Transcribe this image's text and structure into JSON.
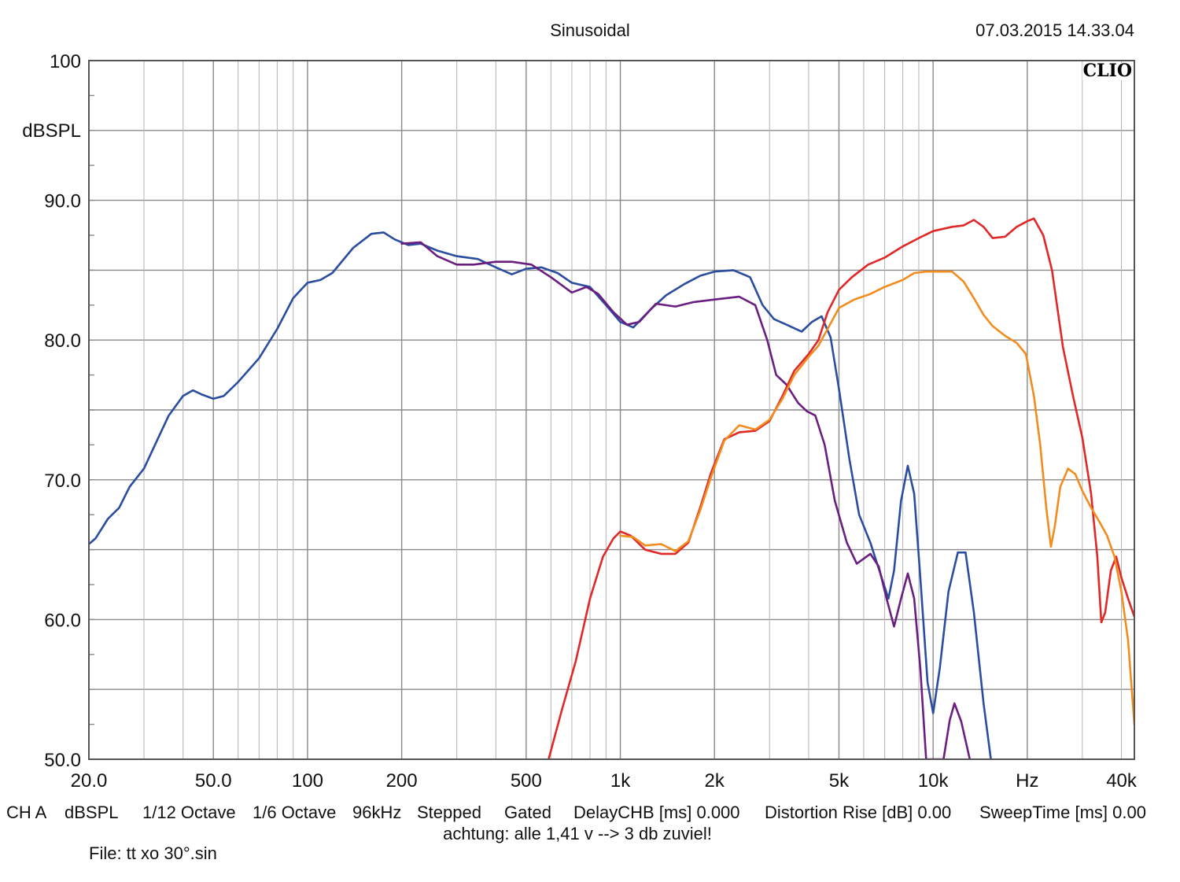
{
  "header": {
    "title": "Sinusoidal",
    "timestamp": "07.03.2015 14.33.04",
    "logo": "CLIO"
  },
  "footer": {
    "settings": [
      "CH A",
      "dBSPL",
      "1/12 Octave",
      "1/6 Octave",
      "96kHz",
      "Stepped",
      "Gated",
      "DelayCHB [ms] 0.000",
      "Distortion Rise [dB] 0.00",
      "SweepTime [ms] 0.00"
    ],
    "note": "achtung: alle 1,41 v --> 3 db zuviel!",
    "file": "File: tt xo 30°.sin"
  },
  "chart_data": {
    "type": "line",
    "title": "Sinusoidal",
    "ylabel": "dBSPL",
    "xlabel": "",
    "xscale": "log",
    "xlim": [
      20,
      44000
    ],
    "ylim": [
      50,
      100
    ],
    "grid": true,
    "y_ticks": [
      "100",
      "90.0",
      "80.0",
      "70.0",
      "60.0",
      "50.0"
    ],
    "x_ticks": [
      {
        "label": "20.0",
        "f": 20
      },
      {
        "label": "50.0",
        "f": 50
      },
      {
        "label": "100",
        "f": 100
      },
      {
        "label": "200",
        "f": 200
      },
      {
        "label": "500",
        "f": 500
      },
      {
        "label": "1k",
        "f": 1000
      },
      {
        "label": "2k",
        "f": 2000
      },
      {
        "label": "5k",
        "f": 5000
      },
      {
        "label": "10k",
        "f": 10000
      },
      {
        "label": "Hz",
        "f": 20000
      },
      {
        "label": "40k",
        "f": 40000
      }
    ],
    "series": [
      {
        "color": "#2b4da0",
        "points": [
          [
            20,
            65.4
          ],
          [
            21,
            65.8
          ],
          [
            23,
            67.2
          ],
          [
            25,
            68.0
          ],
          [
            27,
            69.5
          ],
          [
            30,
            70.8
          ],
          [
            33,
            72.8
          ],
          [
            36,
            74.6
          ],
          [
            40,
            76.0
          ],
          [
            43,
            76.4
          ],
          [
            46,
            76.1
          ],
          [
            50,
            75.8
          ],
          [
            54,
            76.0
          ],
          [
            60,
            77.0
          ],
          [
            70,
            78.7
          ],
          [
            80,
            80.8
          ],
          [
            90,
            83.0
          ],
          [
            100,
            84.1
          ],
          [
            110,
            84.3
          ],
          [
            120,
            84.8
          ],
          [
            140,
            86.6
          ],
          [
            160,
            87.6
          ],
          [
            175,
            87.7
          ],
          [
            190,
            87.2
          ],
          [
            210,
            86.8
          ],
          [
            230,
            86.9
          ],
          [
            260,
            86.4
          ],
          [
            300,
            86.0
          ],
          [
            350,
            85.8
          ],
          [
            400,
            85.2
          ],
          [
            450,
            84.7
          ],
          [
            500,
            85.1
          ],
          [
            560,
            85.2
          ],
          [
            630,
            84.8
          ],
          [
            700,
            84.1
          ],
          [
            800,
            83.8
          ],
          [
            900,
            82.5
          ],
          [
            1000,
            81.3
          ],
          [
            1100,
            80.9
          ],
          [
            1250,
            82.2
          ],
          [
            1400,
            83.2
          ],
          [
            1600,
            84.0
          ],
          [
            1800,
            84.6
          ],
          [
            2000,
            84.9
          ],
          [
            2300,
            85.0
          ],
          [
            2600,
            84.5
          ],
          [
            2850,
            82.5
          ],
          [
            3100,
            81.5
          ],
          [
            3400,
            81.1
          ],
          [
            3800,
            80.6
          ],
          [
            4100,
            81.3
          ],
          [
            4400,
            81.7
          ],
          [
            4700,
            80.2
          ],
          [
            5000,
            76.5
          ],
          [
            5400,
            71.5
          ],
          [
            5800,
            67.5
          ],
          [
            6300,
            65.5
          ],
          [
            6800,
            63.2
          ],
          [
            7200,
            61.5
          ],
          [
            7500,
            63.5
          ],
          [
            7900,
            68.5
          ],
          [
            8300,
            71.0
          ],
          [
            8700,
            69.0
          ],
          [
            9100,
            63.0
          ],
          [
            9600,
            55.5
          ],
          [
            10000,
            53.3
          ],
          [
            10500,
            56.5
          ],
          [
            11200,
            62.0
          ],
          [
            12000,
            64.8
          ],
          [
            12700,
            64.8
          ],
          [
            13500,
            60.5
          ],
          [
            14500,
            54.0
          ],
          [
            15300,
            50.0
          ]
        ]
      },
      {
        "color": "#6a1e80",
        "points": [
          [
            200,
            86.9
          ],
          [
            230,
            87.0
          ],
          [
            260,
            86.0
          ],
          [
            300,
            85.4
          ],
          [
            340,
            85.4
          ],
          [
            400,
            85.6
          ],
          [
            450,
            85.6
          ],
          [
            520,
            85.4
          ],
          [
            600,
            84.5
          ],
          [
            700,
            83.4
          ],
          [
            780,
            83.8
          ],
          [
            850,
            83.3
          ],
          [
            950,
            82.0
          ],
          [
            1050,
            81.1
          ],
          [
            1150,
            81.3
          ],
          [
            1300,
            82.6
          ],
          [
            1500,
            82.4
          ],
          [
            1700,
            82.7
          ],
          [
            2000,
            82.9
          ],
          [
            2400,
            83.1
          ],
          [
            2700,
            82.5
          ],
          [
            2950,
            80.0
          ],
          [
            3150,
            77.5
          ],
          [
            3400,
            76.8
          ],
          [
            3700,
            75.5
          ],
          [
            3950,
            74.9
          ],
          [
            4200,
            74.6
          ],
          [
            4500,
            72.5
          ],
          [
            4850,
            68.5
          ],
          [
            5300,
            65.5
          ],
          [
            5700,
            64.0
          ],
          [
            6300,
            64.7
          ],
          [
            6700,
            63.8
          ],
          [
            7100,
            61.5
          ],
          [
            7500,
            59.5
          ],
          [
            7900,
            61.5
          ],
          [
            8300,
            63.3
          ],
          [
            8700,
            61.5
          ],
          [
            9100,
            56.5
          ],
          [
            9500,
            50.0
          ],
          [
            10800,
            50.0
          ],
          [
            11300,
            52.8
          ],
          [
            11700,
            54.0
          ],
          [
            12300,
            52.7
          ],
          [
            13100,
            50.0
          ]
        ]
      },
      {
        "color": "#e02828",
        "points": [
          [
            590,
            50.0
          ],
          [
            650,
            53.5
          ],
          [
            720,
            57.0
          ],
          [
            800,
            61.5
          ],
          [
            880,
            64.5
          ],
          [
            950,
            65.8
          ],
          [
            1000,
            66.3
          ],
          [
            1080,
            66.0
          ],
          [
            1200,
            65.0
          ],
          [
            1350,
            64.7
          ],
          [
            1500,
            64.7
          ],
          [
            1650,
            65.5
          ],
          [
            1800,
            68.0
          ],
          [
            1950,
            70.5
          ],
          [
            2150,
            72.9
          ],
          [
            2400,
            73.4
          ],
          [
            2700,
            73.5
          ],
          [
            3000,
            74.2
          ],
          [
            3300,
            76.0
          ],
          [
            3600,
            77.8
          ],
          [
            4000,
            79.0
          ],
          [
            4300,
            80.0
          ],
          [
            4600,
            82.0
          ],
          [
            5000,
            83.6
          ],
          [
            5500,
            84.5
          ],
          [
            6200,
            85.4
          ],
          [
            7000,
            85.9
          ],
          [
            8000,
            86.7
          ],
          [
            9000,
            87.3
          ],
          [
            10000,
            87.8
          ],
          [
            11500,
            88.1
          ],
          [
            12500,
            88.2
          ],
          [
            13500,
            88.6
          ],
          [
            14500,
            88.1
          ],
          [
            15500,
            87.3
          ],
          [
            17000,
            87.4
          ],
          [
            18500,
            88.1
          ],
          [
            20000,
            88.5
          ],
          [
            21000,
            88.7
          ],
          [
            22500,
            87.5
          ],
          [
            24000,
            85.0
          ],
          [
            26000,
            79.5
          ],
          [
            28000,
            76.0
          ],
          [
            30000,
            73.0
          ],
          [
            32000,
            69.0
          ],
          [
            33500,
            64.5
          ],
          [
            34500,
            59.8
          ],
          [
            35500,
            60.5
          ],
          [
            37000,
            63.5
          ],
          [
            38500,
            64.5
          ],
          [
            40000,
            63.0
          ],
          [
            42000,
            61.5
          ],
          [
            44000,
            60.2
          ]
        ]
      },
      {
        "color": "#f28c1e",
        "points": [
          [
            1000,
            66.0
          ],
          [
            1100,
            65.9
          ],
          [
            1200,
            65.3
          ],
          [
            1350,
            65.4
          ],
          [
            1500,
            64.9
          ],
          [
            1650,
            65.6
          ],
          [
            1800,
            67.8
          ],
          [
            1950,
            70.2
          ],
          [
            2150,
            72.8
          ],
          [
            2400,
            73.9
          ],
          [
            2700,
            73.6
          ],
          [
            3000,
            74.3
          ],
          [
            3300,
            75.8
          ],
          [
            3600,
            77.5
          ],
          [
            4000,
            78.8
          ],
          [
            4300,
            79.6
          ],
          [
            4600,
            80.8
          ],
          [
            5000,
            82.3
          ],
          [
            5600,
            82.9
          ],
          [
            6300,
            83.3
          ],
          [
            7000,
            83.8
          ],
          [
            8000,
            84.3
          ],
          [
            8700,
            84.8
          ],
          [
            9500,
            84.9
          ],
          [
            10500,
            84.9
          ],
          [
            11500,
            84.9
          ],
          [
            12500,
            84.2
          ],
          [
            13500,
            83.0
          ],
          [
            14500,
            81.8
          ],
          [
            15500,
            81.0
          ],
          [
            17000,
            80.3
          ],
          [
            18500,
            79.8
          ],
          [
            19800,
            79.0
          ],
          [
            21000,
            76.0
          ],
          [
            22000,
            72.5
          ],
          [
            23000,
            68.0
          ],
          [
            23800,
            65.2
          ],
          [
            24500,
            66.7
          ],
          [
            25500,
            69.5
          ],
          [
            27000,
            70.8
          ],
          [
            28500,
            70.4
          ],
          [
            30000,
            69.2
          ],
          [
            32000,
            68.0
          ],
          [
            34000,
            67.0
          ],
          [
            36000,
            66.0
          ],
          [
            38000,
            64.5
          ],
          [
            40000,
            62.0
          ],
          [
            42000,
            58.5
          ],
          [
            44000,
            52.5
          ]
        ]
      }
    ]
  }
}
